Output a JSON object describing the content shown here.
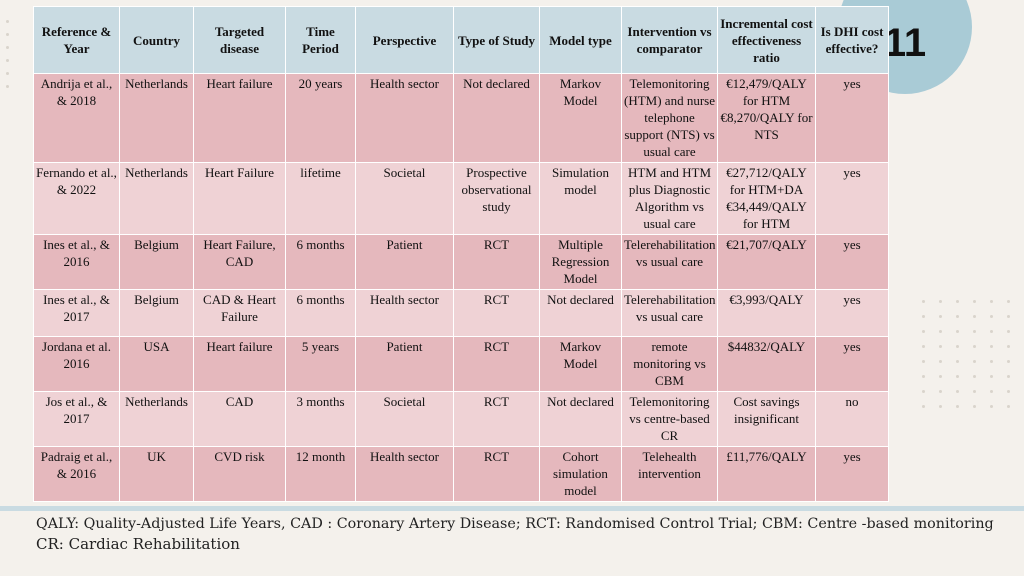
{
  "slide_number": "11",
  "table": {
    "headers": [
      "Reference & Year",
      "Country",
      "Targeted disease",
      "Time Period",
      "Perspective",
      "Type of Study",
      "Model type",
      "Intervention vs comparator",
      "Incremental cost effectiveness ratio",
      "Is DHI cost effective?"
    ],
    "rows": [
      [
        "Andrija et al., & 2018",
        "Netherlands",
        "Heart failure",
        "20 years",
        "Health sector",
        "Not declared",
        "Markov Model",
        "Telemonitoring (HTM) and nurse telephone support (NTS) vs usual care",
        "€12,479/QALY for HTM €8,270/QALY for NTS",
        "yes"
      ],
      [
        "Fernando et al., & 2022",
        "Netherlands",
        "Heart Failure",
        "lifetime",
        "Societal",
        "Prospective observational study",
        "Simulation model",
        "HTM and HTM plus Diagnostic Algorithm vs usual care",
        "€27,712/QALY for HTM+DA €34,449/QALY for HTM",
        "yes"
      ],
      [
        "Ines et al., & 2016",
        "Belgium",
        "Heart Failure, CAD",
        "6 months",
        "Patient",
        "RCT",
        "Multiple Regression Model",
        "Telerehabilitation vs usual care",
        "€21,707/QALY",
        "yes"
      ],
      [
        "Ines et al., & 2017",
        "Belgium",
        "CAD & Heart Failure",
        "6 months",
        "Health sector",
        "RCT",
        "Not declared",
        "Telerehabilitation vs usual care",
        "€3,993/QALY",
        "yes"
      ],
      [
        "Jordana et al. 2016",
        "USA",
        "Heart failure",
        "5 years",
        "Patient",
        "RCT",
        "Markov Model",
        "remote monitoring vs CBM",
        "$44832/QALY",
        "yes"
      ],
      [
        "Jos et al., & 2017",
        "Netherlands",
        "CAD",
        "3 months",
        "Societal",
        "RCT",
        "Not declared",
        "Telemonitoring vs centre-based CR",
        "Cost savings insignificant",
        "no"
      ],
      [
        "Padraig et al., & 2016",
        "UK",
        "CVD risk",
        "12 month",
        "Health sector",
        "RCT",
        "Cohort simulation model",
        "Telehealth intervention",
        "£11,776/QALY",
        "yes"
      ]
    ]
  },
  "footnote": {
    "line1": "QALY: Quality-Adjusted Life Years, CAD : Coronary Artery Disease; RCT: Randomised Control Trial; CBM: Centre -based monitoring",
    "line2": "CR: Cardiac Rehabilitation"
  },
  "colors": {
    "header_bg": "#c9dbe2",
    "row_dark": "#e5b8bd",
    "row_light": "#efd2d5",
    "badge": "#a9cbd6"
  }
}
